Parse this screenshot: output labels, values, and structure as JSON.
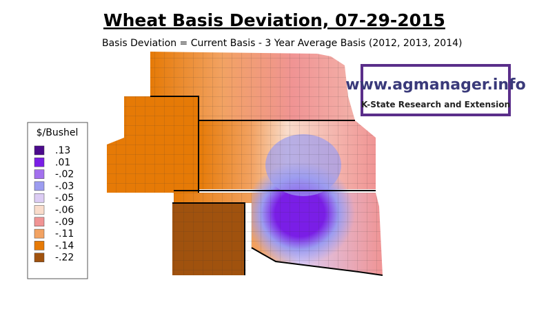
{
  "header": {
    "title": "Wheat Basis Deviation, 07-29-2015",
    "subtitle": "Basis Deviation = Current Basis - 3 Year Average Basis (2012, 2013, 2014)"
  },
  "logo": {
    "url": "www.agmanager.info",
    "org": "K-State Research and Extension"
  },
  "legend": {
    "title": "$/Bushel",
    "items": [
      {
        "label": ".13",
        "color": "#4b0a8c"
      },
      {
        "label": ".01",
        "color": "#7a1ee6"
      },
      {
        "label": "-.02",
        "color": "#a371ee"
      },
      {
        "label": "-.03",
        "color": "#9c9cf0"
      },
      {
        "label": "-.05",
        "color": "#dcccf4"
      },
      {
        "label": "-.06",
        "color": "#f9dccb"
      },
      {
        "label": "-.09",
        "color": "#f09494"
      },
      {
        "label": "-.11",
        "color": "#f2a262"
      },
      {
        "label": "-.14",
        "color": "#e67a06"
      },
      {
        "label": "-.22",
        "color": "#a0520e"
      }
    ]
  }
}
